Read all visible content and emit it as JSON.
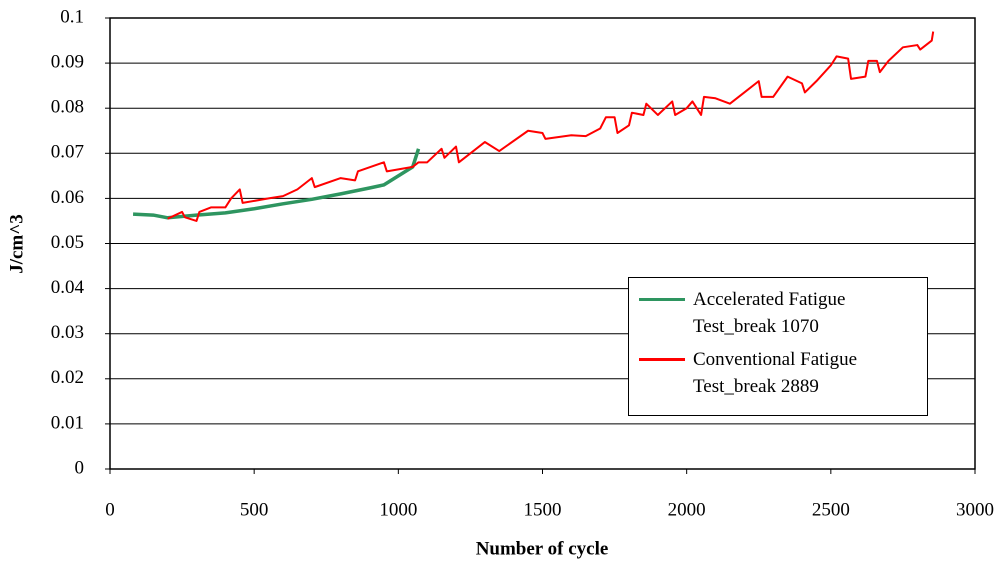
{
  "chart_data": {
    "type": "line",
    "xlabel": "Number of cycle",
    "ylabel": "J/cm^3",
    "xlim": [
      0,
      3000
    ],
    "xticks": [
      0,
      500,
      1000,
      1500,
      2000,
      2500,
      3000
    ],
    "ylim": [
      0,
      0.1
    ],
    "yticks": [
      0,
      0.01,
      0.02,
      0.03,
      0.04,
      0.05,
      0.06,
      0.07,
      0.08,
      0.09,
      0.1
    ],
    "grid": true,
    "legend": "lower right",
    "series": [
      {
        "name": "Accelerated Fatigue Test_break 1070",
        "color": "#2e9560",
        "x": [
          80,
          150,
          200,
          300,
          400,
          500,
          600,
          700,
          800,
          900,
          950,
          1000,
          1050,
          1070
        ],
        "values": [
          0.0565,
          0.0563,
          0.0557,
          0.0563,
          0.0568,
          0.0577,
          0.0588,
          0.0598,
          0.061,
          0.0623,
          0.063,
          0.065,
          0.067,
          0.071
        ]
      },
      {
        "name": "Conventional Fatigue Test_break 2889",
        "color": "#ff0000",
        "x": [
          200,
          250,
          260,
          300,
          310,
          350,
          400,
          420,
          450,
          460,
          550,
          600,
          650,
          700,
          710,
          800,
          850,
          860,
          950,
          960,
          1050,
          1070,
          1100,
          1150,
          1160,
          1200,
          1210,
          1300,
          1350,
          1450,
          1500,
          1510,
          1600,
          1650,
          1700,
          1720,
          1750,
          1760,
          1800,
          1810,
          1850,
          1860,
          1900,
          1950,
          1960,
          2000,
          2020,
          2050,
          2060,
          2100,
          2150,
          2200,
          2250,
          2260,
          2300,
          2350,
          2400,
          2410,
          2450,
          2500,
          2520,
          2560,
          2570,
          2620,
          2630,
          2660,
          2670,
          2700,
          2750,
          2800,
          2810,
          2850,
          2855
        ],
        "values": [
          0.0555,
          0.057,
          0.0558,
          0.055,
          0.057,
          0.058,
          0.058,
          0.06,
          0.062,
          0.059,
          0.06,
          0.0605,
          0.062,
          0.0645,
          0.0625,
          0.0645,
          0.064,
          0.066,
          0.068,
          0.066,
          0.067,
          0.068,
          0.068,
          0.071,
          0.069,
          0.0715,
          0.068,
          0.0725,
          0.0705,
          0.075,
          0.0745,
          0.0732,
          0.074,
          0.0738,
          0.0755,
          0.078,
          0.078,
          0.0745,
          0.0762,
          0.079,
          0.0785,
          0.081,
          0.0785,
          0.0815,
          0.0785,
          0.08,
          0.0815,
          0.0785,
          0.0825,
          0.0822,
          0.081,
          0.0835,
          0.086,
          0.0825,
          0.0825,
          0.087,
          0.0855,
          0.0835,
          0.086,
          0.0895,
          0.0915,
          0.091,
          0.0865,
          0.087,
          0.0905,
          0.0905,
          0.088,
          0.0905,
          0.0935,
          0.094,
          0.093,
          0.095,
          0.097
        ]
      }
    ]
  }
}
